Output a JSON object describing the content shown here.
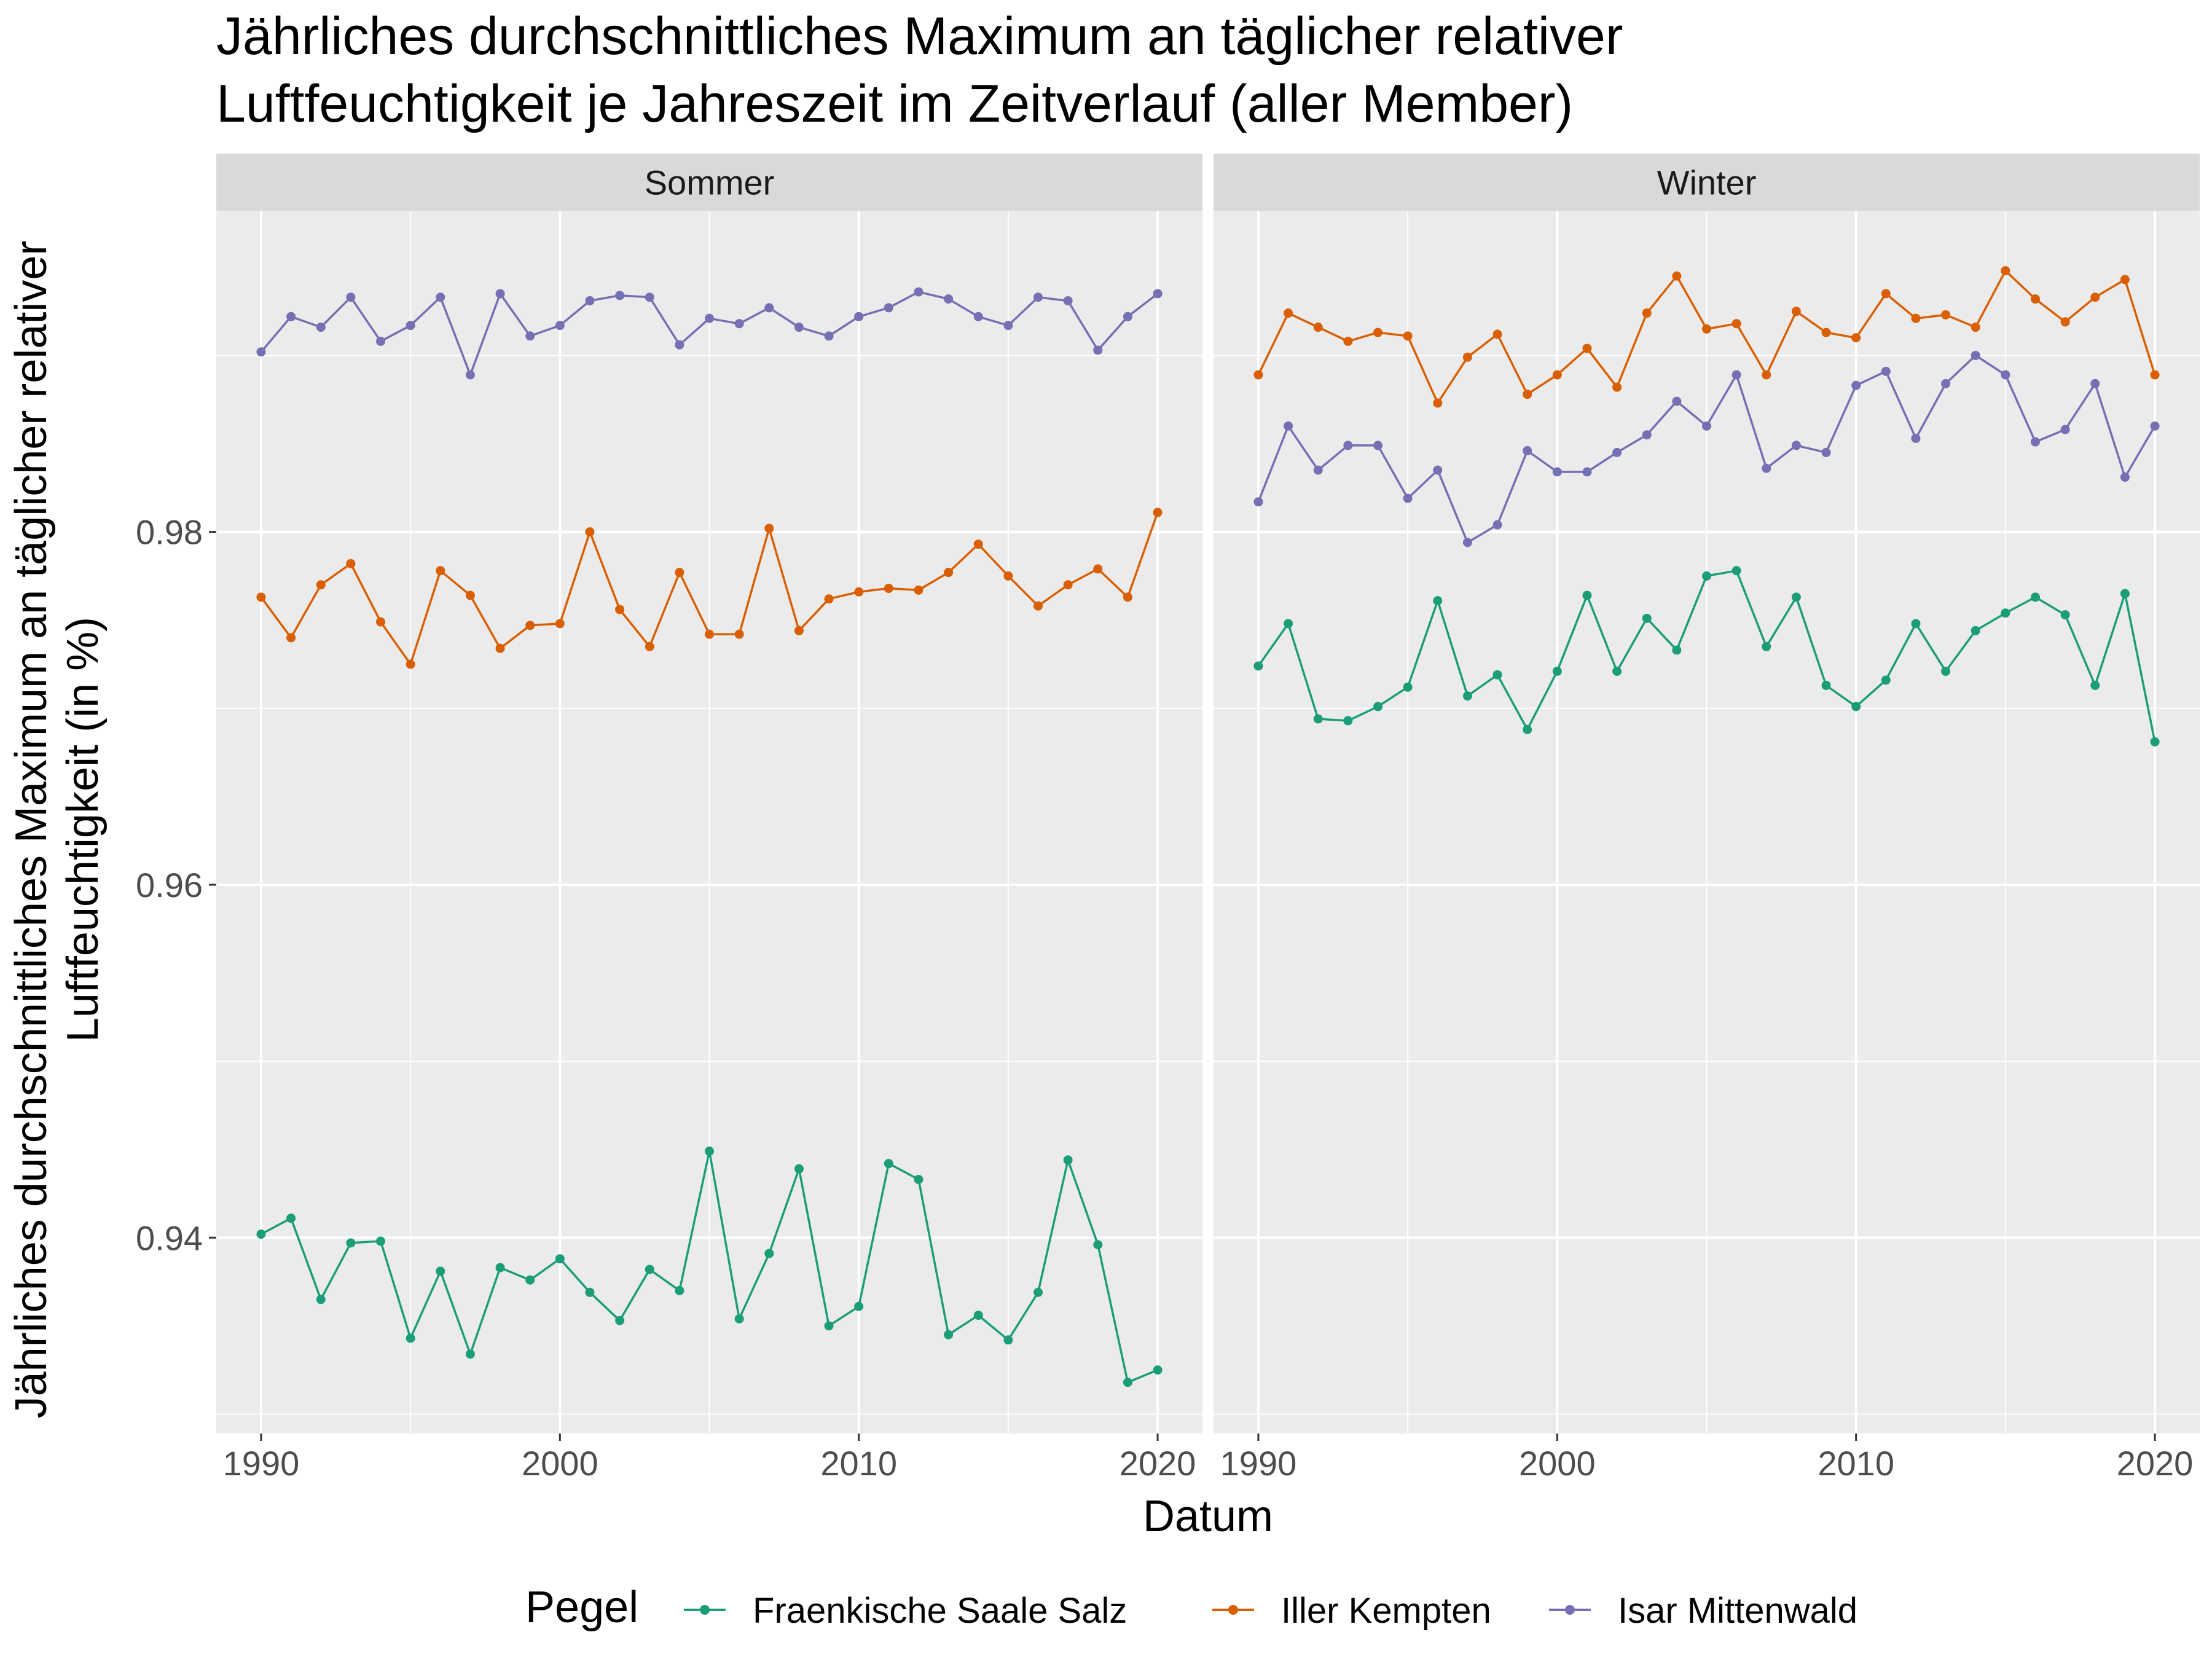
{
  "chart_data": {
    "type": "line",
    "title_lines": [
      "Jährliches durchschnittliches Maximum an täglicher relativer",
      "Luftfeuchtigkeit je Jahreszeit im Zeitverlauf (aller Member)"
    ],
    "xlabel": "Datum",
    "ylabel_lines": [
      "Jährliches durchschnittliches Maximum an täglicher relativer",
      "Luftfeuchtigkeit (in %)"
    ],
    "legend_title": "Pegel",
    "legend_position": "bottom",
    "grid": true,
    "xlim": [
      1988.5,
      2021.5
    ],
    "ylim": [
      0.9289,
      0.9982
    ],
    "x_ticks": [
      1990,
      2000,
      2010,
      2020
    ],
    "x_tick_labels": [
      "1990",
      "2000",
      "2010",
      "2020"
    ],
    "y_ticks": [
      0.94,
      0.96,
      0.98
    ],
    "y_tick_labels": [
      "0.94",
      "0.96",
      "0.98"
    ],
    "x": [
      1990,
      1991,
      1992,
      1993,
      1994,
      1995,
      1996,
      1997,
      1998,
      1999,
      2000,
      2001,
      2002,
      2003,
      2004,
      2005,
      2006,
      2007,
      2008,
      2009,
      2010,
      2011,
      2012,
      2013,
      2014,
      2015,
      2016,
      2017,
      2018,
      2019,
      2020
    ],
    "colors": {
      "Fraenkische Saale Salz": "#1b9e77",
      "Iller Kempten": "#d95f02",
      "Isar Mittenwald": "#7570b3",
      "panel_background": "#ebebeb",
      "strip_background": "#d9d9d9"
    },
    "legend": [
      "Fraenkische Saale Salz",
      "Iller Kempten",
      "Isar Mittenwald"
    ],
    "facets": [
      {
        "label": "Sommer",
        "series": [
          {
            "name": "Fraenkische Saale Salz",
            "values": [
              0.9402,
              0.9411,
              0.9365,
              0.9397,
              0.9398,
              0.9343,
              0.9381,
              0.9334,
              0.9383,
              0.9376,
              0.9388,
              0.9369,
              0.9353,
              0.9382,
              0.937,
              0.9449,
              0.9354,
              0.9391,
              0.9439,
              0.935,
              0.9361,
              0.9442,
              0.9433,
              0.9345,
              0.9356,
              0.9342,
              0.9369,
              0.9444,
              0.9396,
              0.9318,
              0.9325
            ]
          },
          {
            "name": "Iller Kempten",
            "values": [
              0.9763,
              0.974,
              0.977,
              0.9782,
              0.9749,
              0.9725,
              0.9778,
              0.9764,
              0.9734,
              0.9747,
              0.9748,
              0.98,
              0.9756,
              0.9735,
              0.9777,
              0.9742,
              0.9742,
              0.9802,
              0.9744,
              0.9762,
              0.9766,
              0.9768,
              0.9767,
              0.9777,
              0.9793,
              0.9775,
              0.9758,
              0.977,
              0.9779,
              0.9763,
              0.9811
            ]
          },
          {
            "name": "Isar Mittenwald",
            "values": [
              0.9902,
              0.9922,
              0.9916,
              0.9933,
              0.9908,
              0.9917,
              0.9933,
              0.9889,
              0.9935,
              0.9911,
              0.9917,
              0.9931,
              0.9934,
              0.9933,
              0.9906,
              0.9921,
              0.9918,
              0.9927,
              0.9916,
              0.9911,
              0.9922,
              0.9927,
              0.9936,
              0.9932,
              0.9922,
              0.9917,
              0.9933,
              0.9931,
              0.9903,
              0.9922,
              0.9935
            ]
          }
        ]
      },
      {
        "label": "Winter",
        "series": [
          {
            "name": "Fraenkische Saale Salz",
            "values": [
              0.9724,
              0.9748,
              0.9694,
              0.9693,
              0.9701,
              0.9712,
              0.9761,
              0.9707,
              0.9719,
              0.9688,
              0.9721,
              0.9764,
              0.9721,
              0.9751,
              0.9733,
              0.9775,
              0.9778,
              0.9735,
              0.9763,
              0.9713,
              0.9701,
              0.9716,
              0.9748,
              0.9721,
              0.9744,
              0.9754,
              0.9763,
              0.9753,
              0.9713,
              0.9765,
              0.9681
            ]
          },
          {
            "name": "Iller Kempten",
            "values": [
              0.9889,
              0.9924,
              0.9916,
              0.9908,
              0.9913,
              0.9911,
              0.9873,
              0.9899,
              0.9912,
              0.9878,
              0.9889,
              0.9904,
              0.9882,
              0.9924,
              0.9945,
              0.9915,
              0.9918,
              0.9889,
              0.9925,
              0.9913,
              0.991,
              0.9935,
              0.9921,
              0.9923,
              0.9916,
              0.9948,
              0.9932,
              0.9919,
              0.9933,
              0.9943,
              0.9889
            ]
          },
          {
            "name": "Isar Mittenwald",
            "values": [
              0.9817,
              0.986,
              0.9835,
              0.9849,
              0.9849,
              0.9819,
              0.9835,
              0.9794,
              0.9804,
              0.9846,
              0.9834,
              0.9834,
              0.9845,
              0.9855,
              0.9874,
              0.986,
              0.9889,
              0.9836,
              0.9849,
              0.9845,
              0.9883,
              0.9891,
              0.9853,
              0.9884,
              0.99,
              0.9889,
              0.9851,
              0.9858,
              0.9884,
              0.9831,
              0.986
            ]
          }
        ]
      }
    ]
  }
}
